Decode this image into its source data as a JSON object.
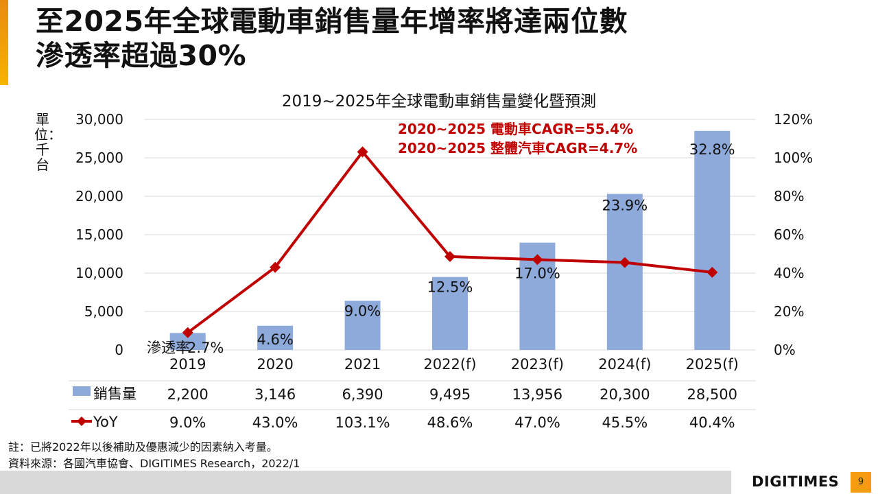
{
  "slide": {
    "title_line1": "至2025年全球電動車銷售量年增率將達兩位數",
    "title_line2": "滲透率超過30%",
    "notes_line1": "註：已將2022年以後補助及優惠減少的因素納入考量。",
    "notes_line2": "資料來源：各國汽車協會、DIGITIMES Research，2022/1",
    "logo_text": "DIGITIMES",
    "page_number": "9"
  },
  "chart_data": {
    "type": "bar",
    "title": "2019~2025年全球電動車銷售量變化暨預測",
    "ylabel": "單位：千台",
    "categories": [
      "2019",
      "2020",
      "2021",
      "2022(f)",
      "2023(f)",
      "2024(f)",
      "2025(f)"
    ],
    "ylim": [
      0,
      30000
    ],
    "y_ticks": [
      "30,000",
      "25,000",
      "20,000",
      "15,000",
      "10,000",
      "5,000",
      "0"
    ],
    "y2lim": [
      0,
      120
    ],
    "y2_ticks": [
      "120%",
      "100%",
      "80%",
      "60%",
      "40%",
      "20%",
      "0%"
    ],
    "series": [
      {
        "name": "銷售量",
        "type": "bar",
        "color": "#8eaadb",
        "values": [
          2200,
          3146,
          6390,
          9495,
          13956,
          20300,
          28500
        ],
        "value_labels": [
          "2,200",
          "3,146",
          "6,390",
          "9,495",
          "13,956",
          "20,300",
          "28,500"
        ]
      },
      {
        "name": "YoY",
        "type": "line",
        "axis": "secondary",
        "color": "#c00000",
        "values": [
          9.0,
          43.0,
          103.1,
          48.6,
          47.0,
          45.5,
          40.4
        ],
        "value_labels": [
          "9.0%",
          "43.0%",
          "103.1%",
          "48.6%",
          "47.0%",
          "45.5%",
          "40.4%"
        ]
      }
    ],
    "penetration": {
      "label": "滲透率",
      "values": [
        "2.7%",
        "4.6%",
        "9.0%",
        "12.5%",
        "17.0%",
        "23.9%",
        "32.8%"
      ]
    },
    "annotations": [
      "2020~2025 電動車CAGR=55.4%",
      "2020~2025 整體汽車CAGR=4.7%"
    ],
    "legend_position": "data-table-bottom"
  }
}
